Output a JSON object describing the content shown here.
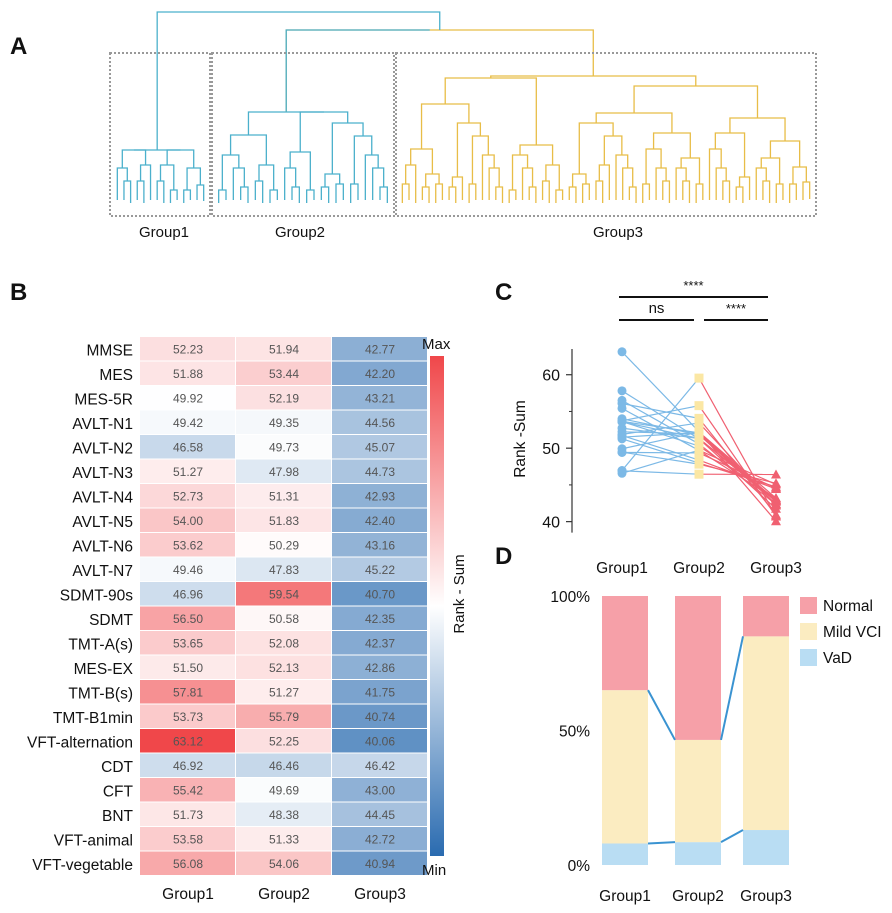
{
  "panels": {
    "a": "A",
    "b": "B",
    "c": "C",
    "d": "D"
  },
  "colors": {
    "cluster_blue": "#4bb0cc",
    "cluster_yellow": "#e8bd47",
    "heat_max": "#f0474a",
    "heat_mid": "#ffffff",
    "heat_min": "#2a6bb0",
    "line_blue": "#7cb9e6",
    "line_red": "#f06071",
    "point_yellow": "#fbe7a4",
    "normal": "#f6a0a8",
    "mild": "#fbecc1",
    "vad": "#b9ddf3",
    "connector": "#3a93d1"
  },
  "dendrogram": {
    "groups": [
      "Group1",
      "Group2",
      "Group3"
    ]
  },
  "heatmap": {
    "rows": [
      "MMSE",
      "MES",
      "MES-5R",
      "AVLT-N1",
      "AVLT-N2",
      "AVLT-N3",
      "AVLT-N4",
      "AVLT-N5",
      "AVLT-N6",
      "AVLT-N7",
      "SDMT-90s",
      "SDMT",
      "TMT-A(s)",
      "MES-EX",
      "TMT-B(s)",
      "TMT-B1min",
      "VFT-alternation",
      "CDT",
      "CFT",
      "BNT",
      "VFT-animal",
      "VFT-vegetable"
    ],
    "columns": [
      "Group1",
      "Group2",
      "Group3"
    ],
    "colorbar_label": "Rank - Sum",
    "max_label": "Max",
    "min_label": "Min"
  },
  "chart_data": [
    {
      "type": "heatmap",
      "panel": "B",
      "rows": [
        "MMSE",
        "MES",
        "MES-5R",
        "AVLT-N1",
        "AVLT-N2",
        "AVLT-N3",
        "AVLT-N4",
        "AVLT-N5",
        "AVLT-N6",
        "AVLT-N7",
        "SDMT-90s",
        "SDMT",
        "TMT-A(s)",
        "MES-EX",
        "TMT-B(s)",
        "TMT-B1min",
        "VFT-alternation",
        "CDT",
        "CFT",
        "BNT",
        "VFT-animal",
        "VFT-vegetable"
      ],
      "columns": [
        "Group1",
        "Group2",
        "Group3"
      ],
      "values": [
        [
          "52.23",
          "51.94",
          "42.77"
        ],
        [
          "51.88",
          "53.44",
          "42.20"
        ],
        [
          "49.92",
          "52.19",
          "43.21"
        ],
        [
          "49.42",
          "49.35",
          "44.56"
        ],
        [
          "46.58",
          "49.73",
          "45.07"
        ],
        [
          "51.27",
          "47.98",
          "44.73"
        ],
        [
          "52.73",
          "51.31",
          "42.93"
        ],
        [
          "54.00",
          "51.83",
          "42.40"
        ],
        [
          "53.62",
          "50.29",
          "43.16"
        ],
        [
          "49.46",
          "47.83",
          "45.22"
        ],
        [
          "46.96",
          "59.54",
          "40.70"
        ],
        [
          "56.50",
          "50.58",
          "42.35"
        ],
        [
          "53.65",
          "52.08",
          "42.37"
        ],
        [
          "51.50",
          "52.13",
          "42.86"
        ],
        [
          "57.81",
          "51.27",
          "41.75"
        ],
        [
          "53.73",
          "55.79",
          "40.74"
        ],
        [
          "63.12",
          "52.25",
          "40.06"
        ],
        [
          "46.92",
          "46.46",
          "46.42"
        ],
        [
          "55.42",
          "49.69",
          "43.00"
        ],
        [
          "51.73",
          "48.38",
          "44.45"
        ],
        [
          "53.58",
          "51.33",
          "42.72"
        ],
        [
          "56.08",
          "54.06",
          "40.94"
        ]
      ],
      "colorbar_label": "Rank - Sum"
    },
    {
      "type": "scatter",
      "panel": "C",
      "categories": [
        "Group1",
        "Group2",
        "Group3"
      ],
      "ylabel": "Rank -Sum",
      "ylim": [
        37.5,
        65
      ],
      "yticks": [
        40,
        50,
        60
      ],
      "significance": [
        {
          "from": "Group1",
          "to": "Group2",
          "label": "ns"
        },
        {
          "from": "Group2",
          "to": "Group3",
          "label": "****"
        },
        {
          "from": "Group1",
          "to": "Group3",
          "label": "****"
        }
      ],
      "subjects": [
        [
          52.23,
          51.94,
          42.77
        ],
        [
          51.88,
          53.44,
          42.2
        ],
        [
          49.92,
          52.19,
          43.21
        ],
        [
          49.42,
          49.35,
          44.56
        ],
        [
          46.58,
          49.73,
          45.07
        ],
        [
          51.27,
          47.98,
          44.73
        ],
        [
          52.73,
          51.31,
          42.93
        ],
        [
          54.0,
          51.83,
          42.4
        ],
        [
          53.62,
          50.29,
          43.16
        ],
        [
          49.46,
          47.83,
          45.22
        ],
        [
          46.96,
          59.54,
          40.7
        ],
        [
          56.5,
          50.58,
          42.35
        ],
        [
          53.65,
          52.08,
          42.37
        ],
        [
          51.5,
          52.13,
          42.86
        ],
        [
          57.81,
          51.27,
          41.75
        ],
        [
          53.73,
          55.79,
          40.74
        ],
        [
          63.12,
          52.25,
          40.06
        ],
        [
          46.92,
          46.46,
          46.42
        ],
        [
          55.42,
          49.69,
          43.0
        ],
        [
          51.73,
          48.38,
          44.45
        ],
        [
          53.58,
          51.33,
          42.72
        ],
        [
          56.08,
          54.06,
          40.94
        ]
      ]
    },
    {
      "type": "bar",
      "stacked": true,
      "panel": "D",
      "categories": [
        "Group1",
        "Group2",
        "Group3"
      ],
      "yticks": [
        "0%",
        "50%",
        "100%"
      ],
      "series": [
        {
          "name": "VaD",
          "values": [
            0.08,
            0.085,
            0.13
          ]
        },
        {
          "name": "Mild VCI",
          "values": [
            0.57,
            0.38,
            0.72
          ]
        },
        {
          "name": "Normal",
          "values": [
            0.35,
            0.535,
            0.15
          ]
        }
      ],
      "legend": [
        "Normal",
        "Mild VCI",
        "VaD"
      ],
      "legend_position": "top-right"
    }
  ]
}
